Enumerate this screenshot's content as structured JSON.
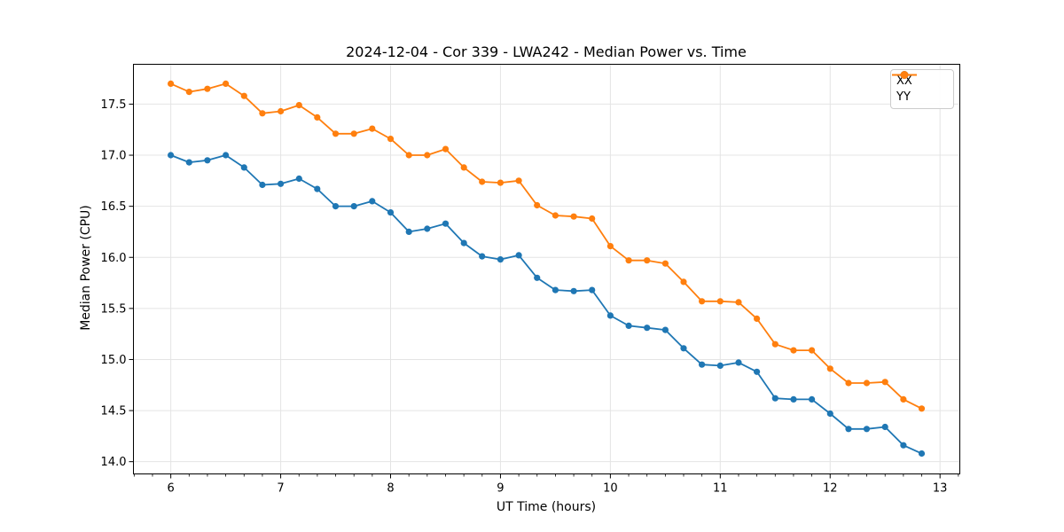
{
  "chart_data": {
    "type": "line",
    "title": "2024-12-04 - Cor 339 - LWA242 - Median Power vs. Time",
    "xlabel": "UT Time (hours)",
    "ylabel": "Median Power (CPU)",
    "xlim": [
      5.66,
      13.18
    ],
    "ylim": [
      13.88,
      17.89
    ],
    "xticks": [
      6,
      7,
      8,
      9,
      10,
      11,
      12,
      13
    ],
    "xtick_labels": [
      "6",
      "7",
      "8",
      "9",
      "10",
      "11",
      "12",
      "13"
    ],
    "yticks": [
      14.0,
      14.5,
      15.0,
      15.5,
      16.0,
      16.5,
      17.0,
      17.5
    ],
    "ytick_labels": [
      "14.0",
      "14.5",
      "15.0",
      "15.5",
      "16.0",
      "16.5",
      "17.0",
      "17.5"
    ],
    "x_minor_step_hours": 0.1667,
    "grid": true,
    "legend_position": "upper right",
    "x": [
      6.0,
      6.167,
      6.333,
      6.5,
      6.667,
      6.833,
      7.0,
      7.167,
      7.333,
      7.5,
      7.667,
      7.833,
      8.0,
      8.167,
      8.333,
      8.5,
      8.667,
      8.833,
      9.0,
      9.167,
      9.333,
      9.5,
      9.667,
      9.833,
      10.0,
      10.167,
      10.333,
      10.5,
      10.667,
      10.833,
      11.0,
      11.167,
      11.333,
      11.5,
      11.667,
      11.833,
      12.0,
      12.167,
      12.333,
      12.5,
      12.667,
      12.833
    ],
    "series": [
      {
        "name": "XX",
        "color": "#1f77b4",
        "values": [
          17.0,
          16.93,
          16.95,
          17.0,
          16.88,
          16.71,
          16.72,
          16.77,
          16.67,
          16.5,
          16.5,
          16.55,
          16.44,
          16.25,
          16.28,
          16.33,
          16.14,
          16.01,
          15.98,
          16.02,
          15.8,
          15.68,
          15.67,
          15.68,
          15.43,
          15.33,
          15.31,
          15.29,
          15.11,
          14.95,
          14.94,
          14.97,
          14.88,
          14.62,
          14.61,
          14.61,
          14.47,
          14.32,
          14.32,
          14.34,
          14.16,
          14.08
        ]
      },
      {
        "name": "YY",
        "color": "#ff7f0e",
        "values": [
          17.7,
          17.62,
          17.65,
          17.7,
          17.58,
          17.41,
          17.43,
          17.49,
          17.37,
          17.21,
          17.21,
          17.26,
          17.16,
          17.0,
          17.0,
          17.06,
          16.88,
          16.74,
          16.73,
          16.75,
          16.51,
          16.41,
          16.4,
          16.38,
          16.11,
          15.97,
          15.97,
          15.94,
          15.76,
          15.57,
          15.57,
          15.56,
          15.4,
          15.15,
          15.09,
          15.09,
          14.91,
          14.77,
          14.77,
          14.78,
          14.61,
          14.52
        ]
      }
    ],
    "style": {
      "grid_color": "#e4e4e4",
      "spine_color": "#000000",
      "background": "#ffffff",
      "legend_border": "#cccccc",
      "tick_color": "#000000",
      "line_width": 1.8,
      "marker_radius": 3.6
    }
  }
}
